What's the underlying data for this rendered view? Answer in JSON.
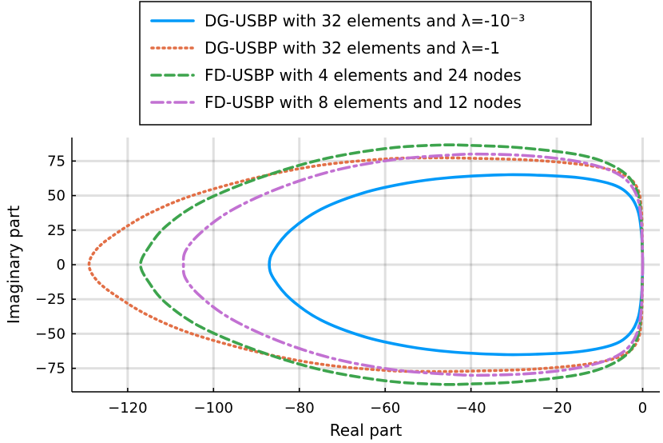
{
  "chart_data": {
    "type": "line",
    "xlabel": "Real part",
    "ylabel": "Imaginary part",
    "xlim": [
      -133,
      4
    ],
    "ylim": [
      -92,
      92
    ],
    "xticks": [
      {
        "value": -120,
        "label": "−120"
      },
      {
        "value": -100,
        "label": "−100"
      },
      {
        "value": -80,
        "label": "−80"
      },
      {
        "value": -60,
        "label": "−60"
      },
      {
        "value": -40,
        "label": "−40"
      },
      {
        "value": -20,
        "label": "−20"
      },
      {
        "value": 0,
        "label": "0"
      }
    ],
    "yticks": [
      {
        "value": 75,
        "label": "75"
      },
      {
        "value": 50,
        "label": "50"
      },
      {
        "value": 25,
        "label": "25"
      },
      {
        "value": 0,
        "label": "0"
      },
      {
        "value": -25,
        "label": "−25"
      },
      {
        "value": -50,
        "label": "−50"
      },
      {
        "value": -75,
        "label": "−75"
      }
    ],
    "grid": true,
    "legend_position": "top",
    "series": [
      {
        "name": "DG-USBP with 32 elements and λ=-10⁻³",
        "color": "#009af9",
        "dash": "solid",
        "points": [
          [
            0,
            0
          ],
          [
            -0.2,
            20
          ],
          [
            -1,
            38
          ],
          [
            -3,
            50
          ],
          [
            -7,
            58
          ],
          [
            -15,
            63
          ],
          [
            -25,
            64.8
          ],
          [
            -33,
            65
          ],
          [
            -45,
            63
          ],
          [
            -55,
            59
          ],
          [
            -65,
            52
          ],
          [
            -75,
            40
          ],
          [
            -82,
            25
          ],
          [
            -86,
            10
          ],
          [
            -87,
            0
          ],
          [
            -86,
            -10
          ],
          [
            -82,
            -25
          ],
          [
            -75,
            -40
          ],
          [
            -65,
            -52
          ],
          [
            -55,
            -59
          ],
          [
            -45,
            -63
          ],
          [
            -33,
            -65
          ],
          [
            -25,
            -64.8
          ],
          [
            -15,
            -63
          ],
          [
            -7,
            -58
          ],
          [
            -3,
            -50
          ],
          [
            -1,
            -38
          ],
          [
            -0.2,
            -20
          ],
          [
            0,
            0
          ]
        ]
      },
      {
        "name": "DG-USBP with 32 elements and λ=-1",
        "color": "#e26f46",
        "dash": "dotted",
        "points": [
          [
            0,
            0
          ],
          [
            -0.3,
            40
          ],
          [
            -1.5,
            57
          ],
          [
            -5,
            66
          ],
          [
            -12,
            71.5
          ],
          [
            -25,
            75.5
          ],
          [
            -40,
            77
          ],
          [
            -50,
            77.3
          ],
          [
            -60,
            76.5
          ],
          [
            -75,
            72
          ],
          [
            -90,
            63
          ],
          [
            -105,
            50
          ],
          [
            -115,
            37
          ],
          [
            -122,
            24
          ],
          [
            -127,
            12
          ],
          [
            -129,
            0
          ],
          [
            -127,
            -12
          ],
          [
            -122,
            -24
          ],
          [
            -115,
            -37
          ],
          [
            -105,
            -50
          ],
          [
            -90,
            -63
          ],
          [
            -75,
            -72
          ],
          [
            -60,
            -76.5
          ],
          [
            -50,
            -77.3
          ],
          [
            -40,
            -77
          ],
          [
            -25,
            -75.5
          ],
          [
            -12,
            -71.5
          ],
          [
            -5,
            -66
          ],
          [
            -1.5,
            -57
          ],
          [
            -0.3,
            -40
          ],
          [
            0,
            0
          ]
        ]
      },
      {
        "name": "FD-USBP with 4 elements and 24 nodes",
        "color": "#3da44d",
        "dash": "dashed",
        "points": [
          [
            0,
            0
          ],
          [
            -0.5,
            40
          ],
          [
            -2,
            58
          ],
          [
            -6,
            70
          ],
          [
            -14,
            79
          ],
          [
            -28,
            84.5
          ],
          [
            -40,
            86.3
          ],
          [
            -48,
            86.5
          ],
          [
            -60,
            84
          ],
          [
            -75,
            76
          ],
          [
            -90,
            62
          ],
          [
            -103,
            45
          ],
          [
            -111,
            28
          ],
          [
            -115,
            13
          ],
          [
            -117,
            0
          ],
          [
            -115,
            -13
          ],
          [
            -111,
            -28
          ],
          [
            -103,
            -45
          ],
          [
            -90,
            -62
          ],
          [
            -75,
            -76
          ],
          [
            -60,
            -84
          ],
          [
            -48,
            -86.5
          ],
          [
            -40,
            -86.3
          ],
          [
            -28,
            -84.5
          ],
          [
            -14,
            -79
          ],
          [
            -6,
            -70
          ],
          [
            -2,
            -58
          ],
          [
            -0.5,
            -40
          ],
          [
            0,
            0
          ]
        ]
      },
      {
        "name": "FD-USBP with 8 elements and 12 nodes",
        "color": "#c271d2",
        "dash": "dashdot",
        "points": [
          [
            0,
            0
          ],
          [
            -0.4,
            35
          ],
          [
            -2,
            54
          ],
          [
            -6,
            66
          ],
          [
            -14,
            74
          ],
          [
            -25,
            78.5
          ],
          [
            -37,
            80
          ],
          [
            -45,
            79.3
          ],
          [
            -58,
            76
          ],
          [
            -72,
            68
          ],
          [
            -85,
            55
          ],
          [
            -96,
            39
          ],
          [
            -103,
            23
          ],
          [
            -106.5,
            10
          ],
          [
            -107,
            0
          ],
          [
            -106.5,
            -10
          ],
          [
            -103,
            -23
          ],
          [
            -96,
            -39
          ],
          [
            -85,
            -55
          ],
          [
            -72,
            -68
          ],
          [
            -58,
            -76
          ],
          [
            -45,
            -79.3
          ],
          [
            -37,
            -80
          ],
          [
            -25,
            -78.5
          ],
          [
            -14,
            -74
          ],
          [
            -6,
            -66
          ],
          [
            -2,
            -54
          ],
          [
            -0.4,
            -35
          ],
          [
            0,
            0
          ]
        ]
      }
    ]
  }
}
